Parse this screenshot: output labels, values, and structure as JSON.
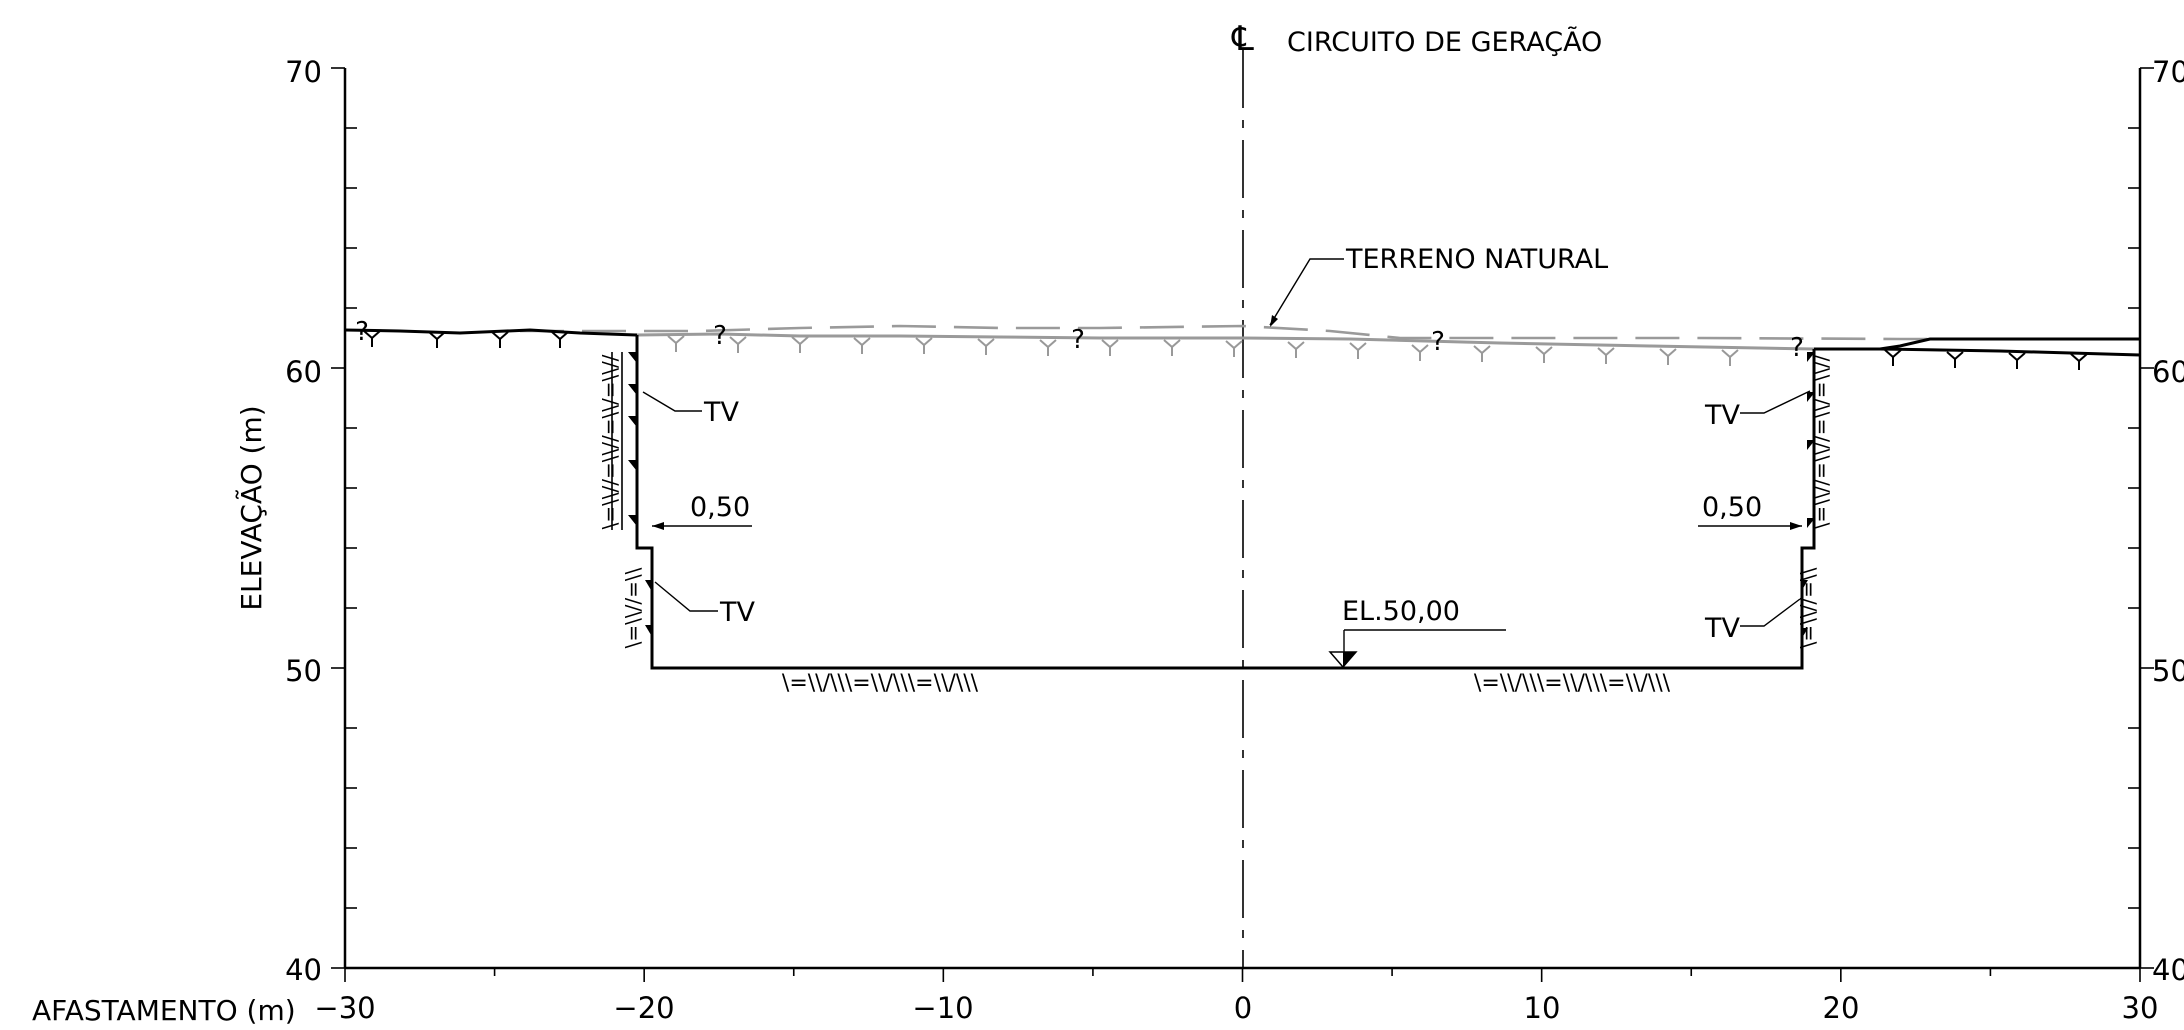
{
  "axes": {
    "x_title": "AFASTAMENTO (m)",
    "y_title": "ELEVAÇÃO (m)",
    "x_ticks": [
      "−30",
      "−20",
      "−10",
      "0",
      "10",
      "20",
      "30"
    ],
    "x_tick_values": [
      -30,
      -20,
      -10,
      0,
      10,
      20,
      30
    ],
    "y_ticks_left": [
      "70",
      "60",
      "50",
      "40"
    ],
    "y_ticks_right": [
      "70",
      "60",
      "50",
      "40"
    ],
    "y_tick_values": [
      70,
      60,
      50,
      40
    ],
    "x_range": [
      -30,
      30
    ],
    "y_range": [
      40,
      70
    ]
  },
  "centerline": {
    "symbol": "℄",
    "label": "CIRCUITO DE GERAÇÃO",
    "x": 0
  },
  "labels": {
    "natural_terrain": "TERRENO NATURAL",
    "elevation": "EL.50,00",
    "tv": "TV",
    "berm_left": "0,50",
    "berm_right": "0,50",
    "question": "?"
  },
  "section": {
    "bottom_elevation": 50.0,
    "bottom_x": [
      -19.5,
      18.7
    ],
    "upper_wall_x": [
      -20.0,
      19.2
    ],
    "berm_elevation": 54.0,
    "berm_width": 0.5,
    "ground_left_elevation": 61.2,
    "ground_right_elevation": 60.8
  }
}
